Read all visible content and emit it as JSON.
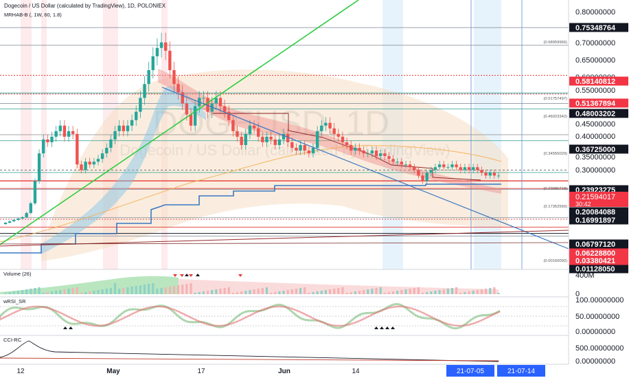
{
  "header": {
    "symbol_line": "Dogecoin / US Dollar (calculated by TradingView), 1D, POLONIEX",
    "indicator_line": "MRHAB-B (, 1W, 60, 1.8)"
  },
  "watermark": {
    "big": "DOGEUSD, 1D",
    "small": "Dogecoin / US Dollar (calculated by TradingView)"
  },
  "colors": {
    "up": "#26a69a",
    "down": "#ef5350",
    "trend_green": "#2ecc40",
    "trend_blue": "#3a78c2",
    "red_dotted": "#e53935",
    "teal_line": "#2a9d8f",
    "axis_badge_dark": "#131722",
    "axis_badge_red": "#f23645",
    "date_badge": "#2962ff"
  },
  "price_axis": {
    "ticks": [
      "0.80000000",
      "0.70000000",
      "0.65000000",
      "0.60000000",
      "0.55000000",
      "0.45000000",
      "0.40000000",
      "0.35000000",
      "0.30000000"
    ],
    "dark_badges": [
      "0.75348764",
      "0.48003202",
      "0.36725000",
      "0.23923275",
      "0.20084088",
      "0.16991897",
      "0.06797120",
      "0.01128050"
    ],
    "red_badges": [
      "0.58140812",
      "0.51367894",
      "0.06228800",
      "0.03380421"
    ],
    "current_price": "0.21594017",
    "countdown": "30:42"
  },
  "fib_labels": [
    "(0.68959966)",
    "(0.51757497)",
    "(0.46023342)",
    "(0.34555029)",
    "(0.23086718)",
    "(0.17352560)",
    "(0.00150092)"
  ],
  "volume_panel": {
    "title": "Volume (26)",
    "ticks": [
      "400M",
      "0"
    ]
  },
  "rsi_panel": {
    "title": "wRSI_SR",
    "ticks": [
      "100.00000000",
      "50.00000000",
      "0.00000000"
    ]
  },
  "cci_panel": {
    "title": "CCI-RC",
    "ticks": [
      "500.00000000",
      "0.00000000"
    ]
  },
  "time_axis": {
    "labels": [
      "12",
      "May",
      "17",
      "Jun",
      "14"
    ],
    "badge_left": "21-07-05",
    "badge_right": "21-07-14"
  },
  "chart_data": {
    "type": "candlestick",
    "title": "Dogecoin / US Dollar (calculated by TradingView), 1D, POLONIEX",
    "ylim": [
      0.0,
      0.85
    ],
    "horizontal_levels": [
      0.75348764,
      0.68959966,
      0.58140812,
      0.51757497,
      0.51367894,
      0.48003202,
      0.46023342,
      0.36725,
      0.34555029,
      0.23923275,
      0.23086718,
      0.20084088,
      0.1735256,
      0.16991897,
      0.0679712,
      0.062288,
      0.03380421,
      0.0112805,
      0.00150092
    ],
    "current_price": 0.21594017,
    "closes": [
      0.05,
      0.055,
      0.06,
      0.065,
      0.07,
      0.085,
      0.12,
      0.2,
      0.3,
      0.35,
      0.34,
      0.36,
      0.38,
      0.4,
      0.36,
      0.38,
      0.37,
      0.26,
      0.24,
      0.27,
      0.26,
      0.27,
      0.28,
      0.3,
      0.32,
      0.35,
      0.38,
      0.4,
      0.38,
      0.4,
      0.42,
      0.45,
      0.5,
      0.55,
      0.6,
      0.65,
      0.68,
      0.7,
      0.67,
      0.6,
      0.55,
      0.52,
      0.48,
      0.44,
      0.4,
      0.47,
      0.5,
      0.5,
      0.45,
      0.48,
      0.5,
      0.47,
      0.45,
      0.42,
      0.38,
      0.36,
      0.33,
      0.37,
      0.4,
      0.39,
      0.36,
      0.34,
      0.36,
      0.35,
      0.33,
      0.35,
      0.37,
      0.34,
      0.32,
      0.31,
      0.33,
      0.31,
      0.3,
      0.32,
      0.38,
      0.4,
      0.41,
      0.39,
      0.37,
      0.36,
      0.34,
      0.33,
      0.31,
      0.32,
      0.31,
      0.3,
      0.3,
      0.31,
      0.29,
      0.3,
      0.29,
      0.28,
      0.27,
      0.27,
      0.26,
      0.26,
      0.25,
      0.24,
      0.22,
      0.2,
      0.23,
      0.24,
      0.25,
      0.26,
      0.25,
      0.25,
      0.26,
      0.25,
      0.24,
      0.25,
      0.24,
      0.25,
      0.24,
      0.23,
      0.22,
      0.23,
      0.22,
      0.22
    ]
  }
}
